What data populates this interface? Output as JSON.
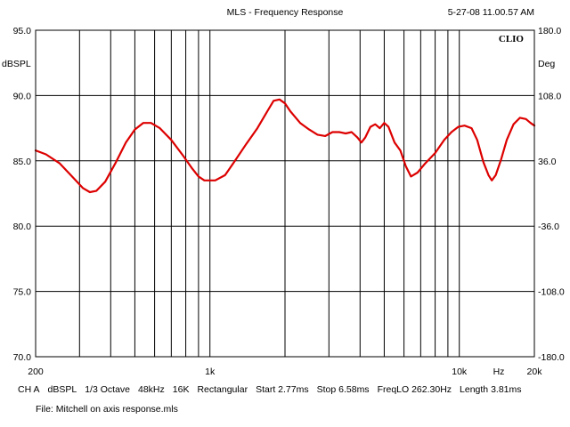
{
  "header": {
    "title": "MLS - Frequency Response",
    "timestamp": "5-27-08 11.00.57 AM"
  },
  "brand": "CLIO",
  "chart_data": {
    "type": "line",
    "title": "MLS - Frequency Response",
    "x_scale": "log",
    "xlim": [
      200,
      20000
    ],
    "x_tick_labels": [
      {
        "value": 200,
        "label": "200"
      },
      {
        "value": 1000,
        "label": "1k"
      },
      {
        "value": 10000,
        "label": "10k"
      },
      {
        "value": 20000,
        "label": "20k"
      }
    ],
    "x_unit_label": "Hz",
    "y_left": {
      "label": "dBSPL",
      "ylim": [
        70,
        95
      ],
      "ticks": [
        {
          "value": 95,
          "label": "95.0"
        },
        {
          "value": 90,
          "label": "90.0"
        },
        {
          "value": 85,
          "label": "85.0"
        },
        {
          "value": 80,
          "label": "80.0"
        },
        {
          "value": 75,
          "label": "75.0"
        },
        {
          "value": 70,
          "label": "70.0"
        }
      ]
    },
    "y_right": {
      "label": "Deg",
      "ylim": [
        -180,
        180
      ],
      "ticks": [
        {
          "value": 180,
          "label": "180.0"
        },
        {
          "value": 108,
          "label": "108.0"
        },
        {
          "value": 36,
          "label": "36.0"
        },
        {
          "value": -36,
          "label": "-36.0"
        },
        {
          "value": -108,
          "label": "-108.0"
        },
        {
          "value": -180,
          "label": "-180.0"
        }
      ]
    },
    "grid": true,
    "series": [
      {
        "color": "#dd0000",
        "points": [
          [
            200,
            85.8
          ],
          [
            220,
            85.5
          ],
          [
            250,
            84.8
          ],
          [
            280,
            83.8
          ],
          [
            310,
            82.9
          ],
          [
            330,
            82.6
          ],
          [
            350,
            82.7
          ],
          [
            380,
            83.4
          ],
          [
            420,
            84.9
          ],
          [
            460,
            86.4
          ],
          [
            500,
            87.4
          ],
          [
            540,
            87.9
          ],
          [
            580,
            87.9
          ],
          [
            630,
            87.5
          ],
          [
            700,
            86.6
          ],
          [
            780,
            85.4
          ],
          [
            850,
            84.4
          ],
          [
            900,
            83.8
          ],
          [
            950,
            83.5
          ],
          [
            1050,
            83.5
          ],
          [
            1150,
            83.9
          ],
          [
            1250,
            84.9
          ],
          [
            1400,
            86.3
          ],
          [
            1550,
            87.5
          ],
          [
            1700,
            88.8
          ],
          [
            1800,
            89.6
          ],
          [
            1900,
            89.7
          ],
          [
            2000,
            89.4
          ],
          [
            2100,
            88.8
          ],
          [
            2300,
            87.9
          ],
          [
            2500,
            87.4
          ],
          [
            2700,
            87.0
          ],
          [
            2900,
            86.9
          ],
          [
            3100,
            87.2
          ],
          [
            3300,
            87.2
          ],
          [
            3500,
            87.1
          ],
          [
            3700,
            87.2
          ],
          [
            3900,
            86.8
          ],
          [
            4050,
            86.4
          ],
          [
            4200,
            86.8
          ],
          [
            4400,
            87.6
          ],
          [
            4600,
            87.8
          ],
          [
            4800,
            87.5
          ],
          [
            5000,
            87.9
          ],
          [
            5200,
            87.6
          ],
          [
            5500,
            86.4
          ],
          [
            5800,
            85.8
          ],
          [
            6100,
            84.6
          ],
          [
            6400,
            83.8
          ],
          [
            6800,
            84.1
          ],
          [
            7300,
            84.8
          ],
          [
            8000,
            85.6
          ],
          [
            8700,
            86.6
          ],
          [
            9300,
            87.2
          ],
          [
            9900,
            87.6
          ],
          [
            10500,
            87.7
          ],
          [
            11200,
            87.5
          ],
          [
            11800,
            86.6
          ],
          [
            12500,
            84.9
          ],
          [
            13100,
            83.9
          ],
          [
            13500,
            83.5
          ],
          [
            14000,
            83.9
          ],
          [
            14700,
            85.1
          ],
          [
            15500,
            86.6
          ],
          [
            16500,
            87.8
          ],
          [
            17500,
            88.3
          ],
          [
            18500,
            88.2
          ],
          [
            19300,
            87.9
          ],
          [
            20000,
            87.7
          ]
        ]
      }
    ]
  },
  "info_bar": {
    "items": [
      "CH A",
      "dBSPL",
      "1/3 Octave",
      "48kHz",
      "16K",
      "Rectangular",
      "Start 2.77ms",
      "Stop 6.58ms",
      "FreqLO 262.30Hz",
      "Length 3.81ms"
    ],
    "file": "File: Mitchell on axis response.mls"
  },
  "colors": {
    "curve": "#dd0000",
    "grid": "#000000",
    "background": "#ffffff"
  }
}
